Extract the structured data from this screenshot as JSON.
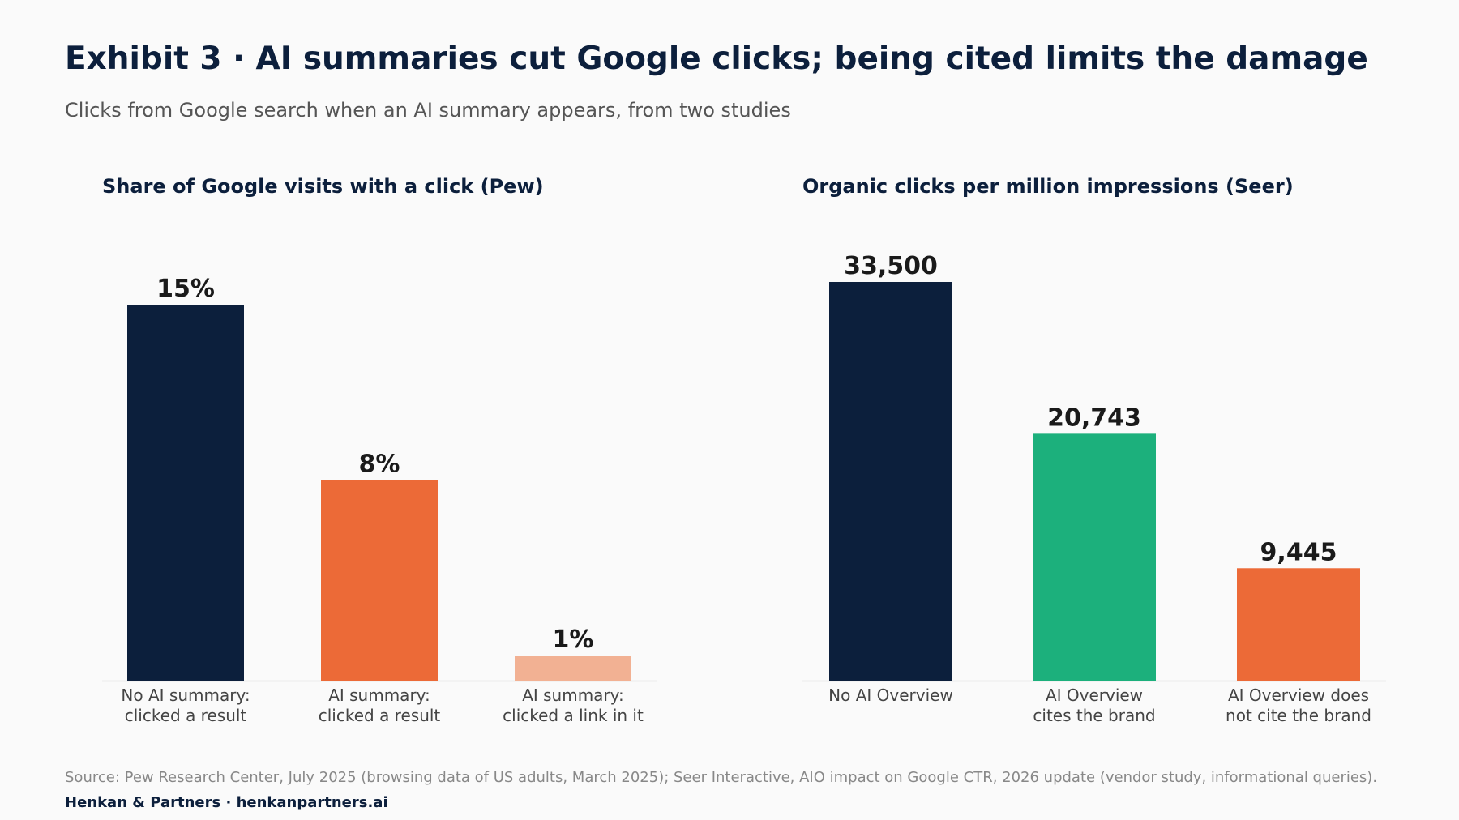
{
  "header": {
    "title": "Exhibit 3 · AI summaries cut Google clicks; being cited limits the damage",
    "subtitle": "Clicks from Google search when an AI summary appears, from two studies"
  },
  "chart_data": [
    {
      "type": "bar",
      "title": "Share of Google visits with a click (Pew)",
      "categories": [
        "No AI summary:\nclicked a result",
        "AI summary:\nclicked a result",
        "AI summary:\nclicked a link in it"
      ],
      "values": [
        15,
        8,
        1
      ],
      "value_labels": [
        "15%",
        "8%",
        "1%"
      ],
      "colors": [
        "#0c1f3c",
        "#ec6a37",
        "#f2b193"
      ],
      "ylim": [
        0,
        15
      ],
      "grid": false,
      "legend": "none"
    },
    {
      "type": "bar",
      "title": "Organic clicks per million impressions (Seer)",
      "categories": [
        "No AI Overview",
        "AI Overview\ncites the brand",
        "AI Overview does\nnot cite the brand"
      ],
      "values": [
        33500,
        20743,
        9445
      ],
      "value_labels": [
        "33,500",
        "20,743",
        "9,445"
      ],
      "colors": [
        "#0c1f3c",
        "#1cb07c",
        "#ec6a37"
      ],
      "ylim": [
        0,
        33500
      ],
      "grid": false,
      "legend": "none"
    }
  ],
  "footer": {
    "source": "Source: Pew Research Center, July 2025 (browsing data of US adults, March 2025); Seer Interactive, AIO impact on Google CTR, 2026 update (vendor study, informational queries).",
    "brand": "Henkan & Partners · henkanpartners.ai"
  }
}
